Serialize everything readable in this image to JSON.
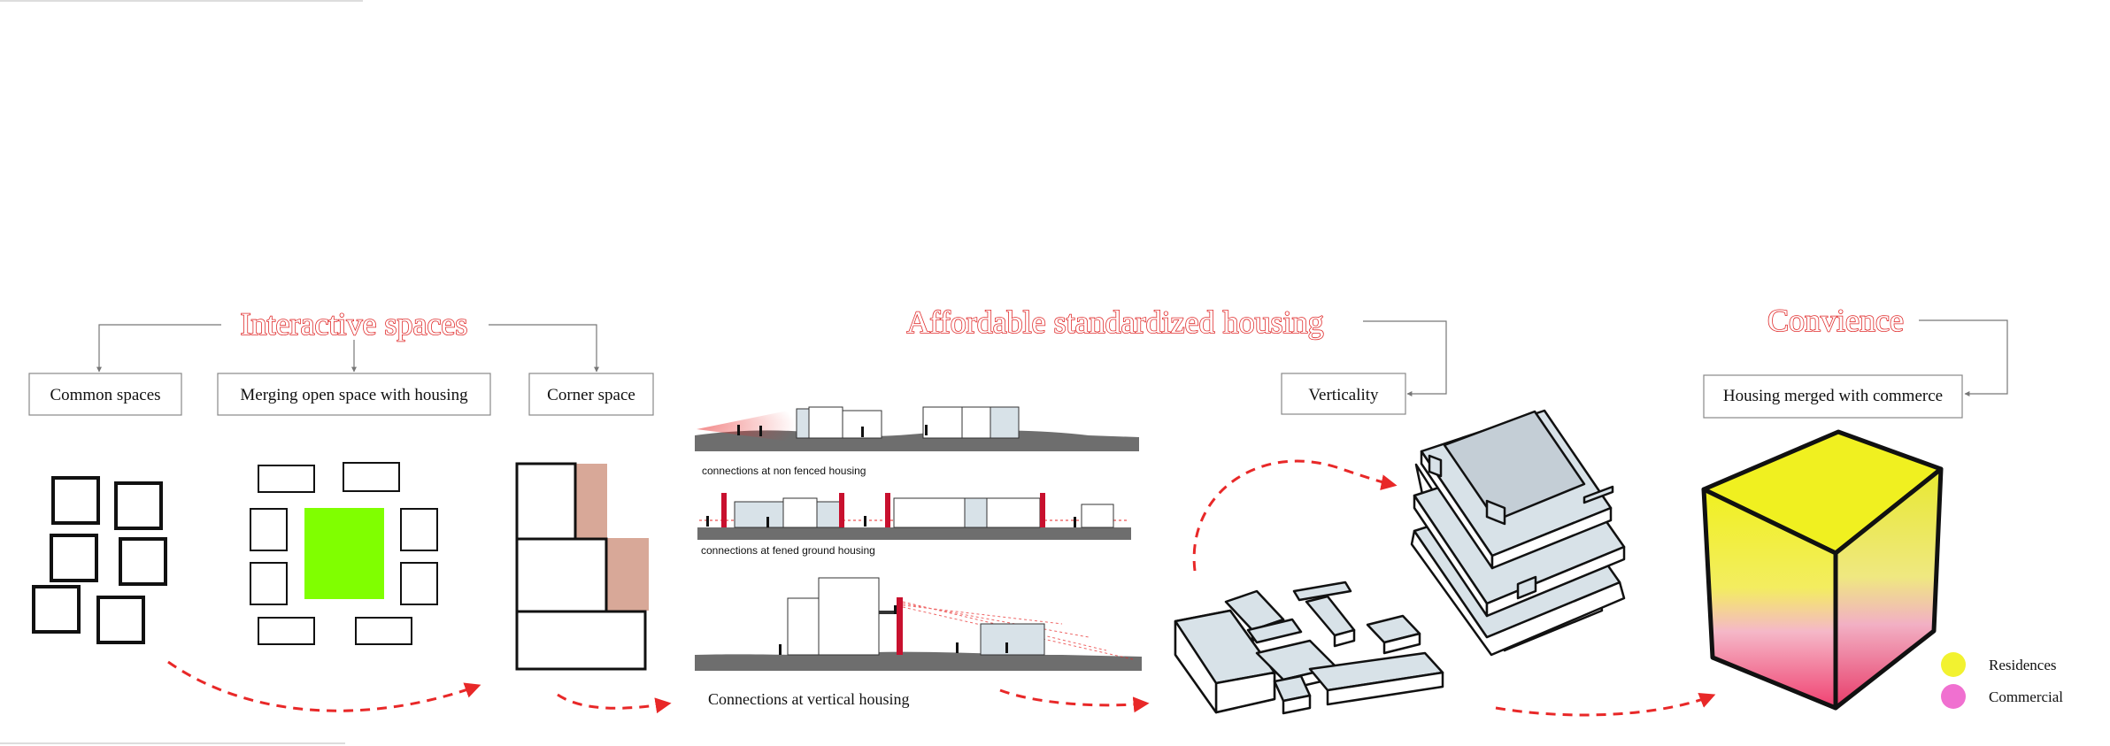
{
  "headings": {
    "interactive": "Interactive spaces",
    "affordable": "Affordable standardized housing",
    "convience": "Convience"
  },
  "boxes": {
    "common": "Common spaces",
    "merging": "Merging open space with  housing",
    "corner": "Corner space",
    "verticality": "Verticality",
    "commerce": "Housing merged with commerce"
  },
  "sections": {
    "non_fenced": "connections at non fenced housing",
    "fenced": "connections at  fened ground housing",
    "vertical": "Connections at vertical housing"
  },
  "legend": {
    "residences": "Residences",
    "commercial": "Commercial"
  },
  "colors": {
    "title_red": "#e02b2b",
    "arrow_red": "#e82828",
    "open_space_green": "#80ff00",
    "corner_tan": "#d8a898",
    "residences_yellow": "#f2f230",
    "commercial_pink": "#f070d0",
    "building_face": "#d8e2e8",
    "ground_gray": "#6e6e6e"
  }
}
